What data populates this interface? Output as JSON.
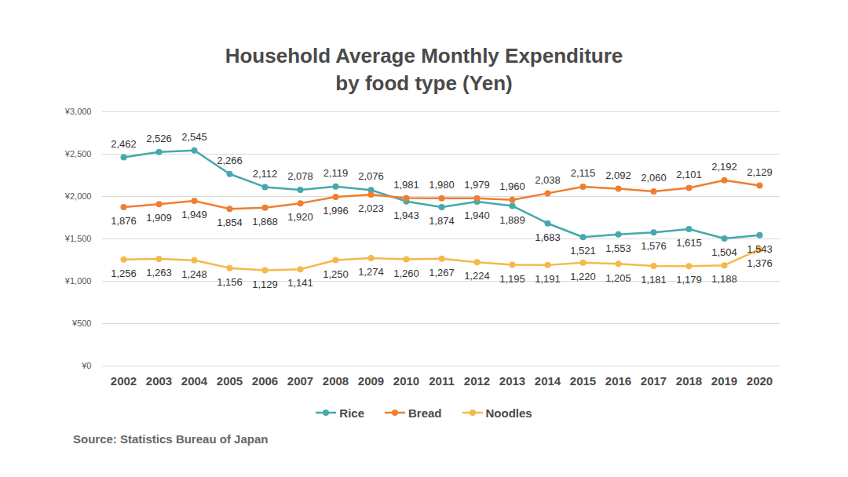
{
  "chart_data": {
    "type": "line",
    "title": "Household Average Monthly Expenditure",
    "subtitle": "by food type (Yen)",
    "caption": "Source: Statistics Bureau of Japan",
    "categories": [
      "2002",
      "2003",
      "2004",
      "2005",
      "2006",
      "2007",
      "2008",
      "2009",
      "2010",
      "2011",
      "2012",
      "2013",
      "2014",
      "2015",
      "2016",
      "2017",
      "2018",
      "2019",
      "2020"
    ],
    "series": [
      {
        "name": "Rice",
        "color": "#45a9ad",
        "marker": "circle",
        "values": [
          2462,
          2526,
          2545,
          2266,
          2112,
          2078,
          2119,
          2076,
          1943,
          1874,
          1940,
          1889,
          1683,
          1521,
          1553,
          1576,
          1615,
          1504,
          1543
        ],
        "value_labels": [
          "2,462",
          "2,526",
          "2,545",
          "2,266",
          "2,112",
          "2,078",
          "2,119",
          "2,076",
          "1,943",
          "1,874",
          "1,940",
          "1,889",
          "1,683",
          "1,521",
          "1,553",
          "1,576",
          "1,615",
          "1,504",
          "1,543"
        ]
      },
      {
        "name": "Bread",
        "color": "#ee7e32",
        "marker": "circle",
        "values": [
          1876,
          1909,
          1949,
          1854,
          1868,
          1920,
          1996,
          2023,
          1981,
          1980,
          1979,
          1960,
          2038,
          2115,
          2092,
          2060,
          2101,
          2192,
          2129
        ],
        "value_labels": [
          "1,876",
          "1,909",
          "1,949",
          "1,854",
          "1,868",
          "1,920",
          "1,996",
          "2,023",
          "1,981",
          "1,980",
          "1,979",
          "1,960",
          "2,038",
          "2,115",
          "2,092",
          "2,060",
          "2,101",
          "2,192",
          "2,129"
        ]
      },
      {
        "name": "Noodles",
        "color": "#f5b94a",
        "marker": "circle",
        "values": [
          1256,
          1263,
          1248,
          1156,
          1129,
          1141,
          1250,
          1274,
          1260,
          1267,
          1224,
          1195,
          1191,
          1220,
          1205,
          1181,
          1179,
          1188,
          1376
        ],
        "value_labels": [
          "1,256",
          "1,263",
          "1,248",
          "1,156",
          "1,129",
          "1,141",
          "1,250",
          "1,274",
          "1,260",
          "1,267",
          "1,224",
          "1,195",
          "1,191",
          "1,220",
          "1,205",
          "1,181",
          "1,179",
          "1,188",
          "1,376"
        ]
      }
    ],
    "ylim": [
      0,
      3000
    ],
    "yticks": [
      {
        "value": 0,
        "label": "¥0"
      },
      {
        "value": 500,
        "label": "¥500"
      },
      {
        "value": 1000,
        "label": "¥1,000"
      },
      {
        "value": 1500,
        "label": "¥1,500"
      },
      {
        "value": 2000,
        "label": "¥2,000"
      },
      {
        "value": 2500,
        "label": "¥2,500"
      },
      {
        "value": 3000,
        "label": "¥3,000"
      }
    ],
    "grid": true,
    "legend": "bottom",
    "data_labels": true
  }
}
